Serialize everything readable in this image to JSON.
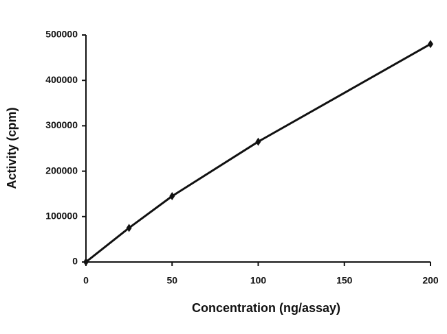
{
  "chart_data": {
    "type": "line",
    "x_label": "Concentration (ng/assay)",
    "y_label": "Activity (cpm)",
    "x": [
      0,
      25,
      50,
      100,
      200
    ],
    "series": [
      {
        "name": "Activity",
        "color": "#111111",
        "values": [
          0,
          75000,
          145000,
          265000,
          480000
        ]
      }
    ],
    "xlim": [
      0,
      200
    ],
    "xticks": [
      0,
      50,
      100,
      150,
      200
    ],
    "ylim": [
      0,
      500000
    ],
    "yticks": [
      0,
      100000,
      200000,
      300000,
      400000,
      500000
    ],
    "grid": false
  }
}
